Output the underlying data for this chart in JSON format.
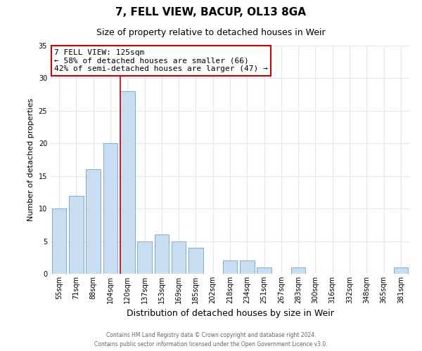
{
  "title": "7, FELL VIEW, BACUP, OL13 8GA",
  "subtitle": "Size of property relative to detached houses in Weir",
  "xlabel": "Distribution of detached houses by size in Weir",
  "ylabel": "Number of detached properties",
  "categories": [
    "55sqm",
    "71sqm",
    "88sqm",
    "104sqm",
    "120sqm",
    "137sqm",
    "153sqm",
    "169sqm",
    "185sqm",
    "202sqm",
    "218sqm",
    "234sqm",
    "251sqm",
    "267sqm",
    "283sqm",
    "300sqm",
    "316sqm",
    "332sqm",
    "348sqm",
    "365sqm",
    "381sqm"
  ],
  "values": [
    10,
    12,
    16,
    20,
    28,
    5,
    6,
    5,
    4,
    0,
    2,
    2,
    1,
    0,
    1,
    0,
    0,
    0,
    0,
    0,
    1
  ],
  "bar_color": "#c9ddf0",
  "bar_edgecolor": "#7aadd4",
  "vline_color": "#cc0000",
  "vline_x_index": 4,
  "ylim": [
    0,
    35
  ],
  "yticks": [
    0,
    5,
    10,
    15,
    20,
    25,
    30,
    35
  ],
  "annotation_title": "7 FELL VIEW: 125sqm",
  "annotation_line1": "← 58% of detached houses are smaller (66)",
  "annotation_line2": "42% of semi-detached houses are larger (47) →",
  "annotation_box_color": "#ffffff",
  "annotation_box_edgecolor": "#cc0000",
  "footer1": "Contains HM Land Registry data © Crown copyright and database right 2024.",
  "footer2": "Contains public sector information licensed under the Open Government Licence v3.0.",
  "background_color": "#ffffff",
  "grid_color": "#dde8f4",
  "title_fontsize": 11,
  "subtitle_fontsize": 9,
  "ylabel_fontsize": 8,
  "xlabel_fontsize": 9,
  "tick_fontsize": 7,
  "footer_fontsize": 5.5,
  "annot_fontsize": 8
}
